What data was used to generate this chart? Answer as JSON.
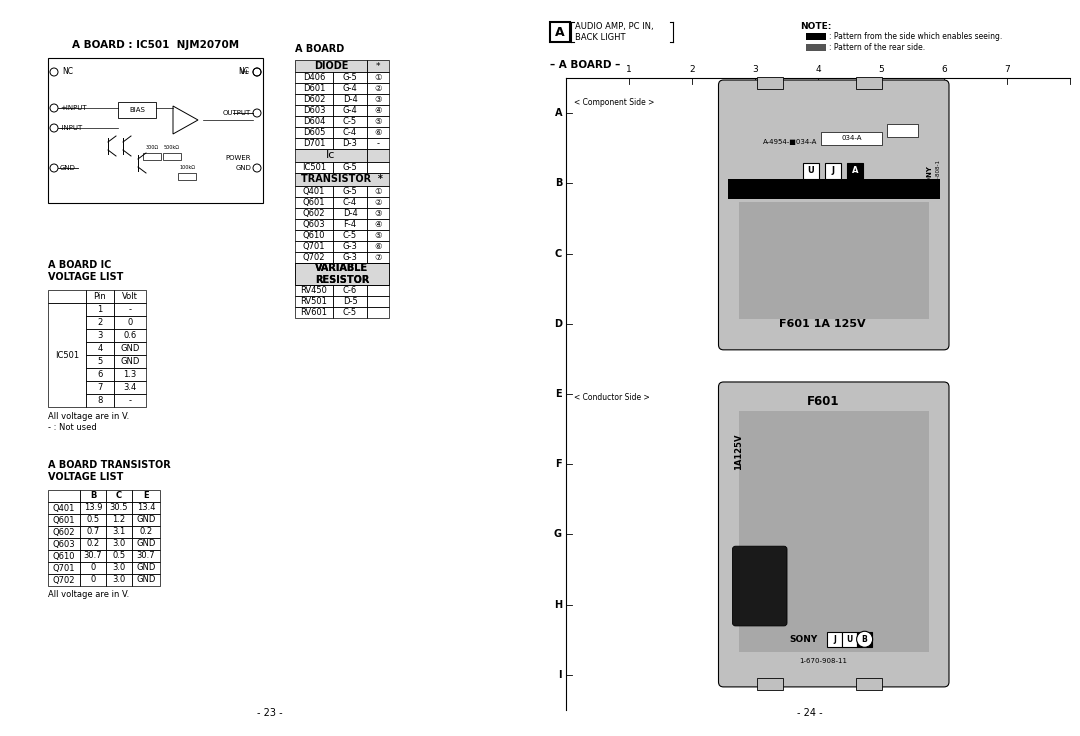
{
  "page_left_number": "- 23 -",
  "page_right_number": "- 24 -",
  "circuit_title": "A BOARD : IC501  NJM2070M",
  "ic_voltage_title": "A BOARD IC\nVOLTAGE LIST",
  "ic_voltage_ic": "IC501",
  "ic_voltage_data": [
    [
      "1",
      "-"
    ],
    [
      "2",
      "0"
    ],
    [
      "3",
      "0.6"
    ],
    [
      "4",
      "GND"
    ],
    [
      "5",
      "GND"
    ],
    [
      "6",
      "1.3"
    ],
    [
      "7",
      "3.4"
    ],
    [
      "8",
      "-"
    ]
  ],
  "ic_voltage_note1": "All voltage are in V.",
  "ic_voltage_note2": "- : Not used",
  "transistor_title": "A BOARD TRANSISTOR\nVOLTAGE LIST",
  "transistor_header": [
    "",
    "B",
    "C",
    "E"
  ],
  "transistor_data": [
    [
      "Q401",
      "13.9",
      "30.5",
      "13.4"
    ],
    [
      "Q601",
      "0.5",
      "1.2",
      "GND"
    ],
    [
      "Q602",
      "0.7",
      "3.1",
      "0.2"
    ],
    [
      "Q603",
      "0.2",
      "3.0",
      "GND"
    ],
    [
      "Q610",
      "30.7",
      "0.5",
      "30.7"
    ],
    [
      "Q701",
      "0",
      "3.0",
      "GND"
    ],
    [
      "Q702",
      "0",
      "3.0",
      "GND"
    ]
  ],
  "transistor_note": "All voltage are in V.",
  "aboard_title": "A BOARD",
  "diode_data": [
    [
      "D406",
      "G-5",
      "①"
    ],
    [
      "D601",
      "G-4",
      "②"
    ],
    [
      "D602",
      "D-4",
      "③"
    ],
    [
      "D603",
      "G-4",
      "④"
    ],
    [
      "D604",
      "C-5",
      "⑤"
    ],
    [
      "D605",
      "C-4",
      "⑥"
    ],
    [
      "D701",
      "D-3",
      "-"
    ]
  ],
  "ic_data": [
    [
      "IC501",
      "G-5",
      ""
    ]
  ],
  "transistor_board_data": [
    [
      "Q401",
      "G-5",
      "①"
    ],
    [
      "Q601",
      "C-4",
      "②"
    ],
    [
      "Q602",
      "D-4",
      "③"
    ],
    [
      "Q603",
      "F-4",
      "④"
    ],
    [
      "Q610",
      "C-5",
      "⑤"
    ],
    [
      "Q701",
      "G-3",
      "⑥"
    ],
    [
      "Q702",
      "G-3",
      "⑦"
    ]
  ],
  "variable_resistor_data": [
    [
      "RV450",
      "C-6",
      ""
    ],
    [
      "RV501",
      "D-5",
      ""
    ],
    [
      "RV601",
      "C-5",
      ""
    ]
  ],
  "right_header_label": "A",
  "right_header_text1": "AUDIO AMP, PC IN,",
  "right_header_text2": "BACK LIGHT",
  "note_text": "NOTE:",
  "note1": ": Pattern from the side which enables seeing.",
  "note2": ": Pattern of the rear side.",
  "aboard_board_label": "– A BOARD –",
  "grid_cols": [
    "1",
    "2",
    "3",
    "4",
    "5",
    "6",
    "7"
  ],
  "grid_rows": [
    "A",
    "B",
    "C",
    "D",
    "E",
    "F",
    "G",
    "H",
    "I"
  ],
  "component_side_label": "< Component Side >",
  "conductor_side_label": "< Conductor Side >"
}
